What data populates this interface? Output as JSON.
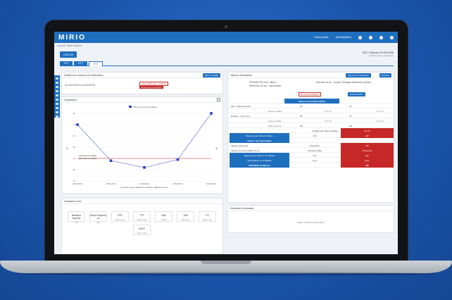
{
  "app": {
    "logo": "MIRIO",
    "links": [
      "Centre public",
      "Administration"
    ]
  },
  "breadcrumb": "Accueil / Bilan isokinet",
  "patient": {
    "tab_label": "COLON",
    "info_line1": "SECT. Etienne, 52 000 8795",
    "info_line2": "ancienne date / pathologie"
  },
  "tabs": [
    {
      "label": "ET1"
    },
    {
      "label": "ET2"
    },
    {
      "label": "ET3"
    }
  ],
  "session_card": {
    "title": "Détails de la séance de rééducation",
    "button": "Retour détaillé",
    "dates": "du 01/01/2019   au 01/03/2019",
    "tag1": "Zone fiable pour : évaluée",
    "tag2": "Programme à l'horaire"
  },
  "graph_card": {
    "title": "Graphiques",
    "legend": "Valeurs moyennes fiables",
    "x_axis_title": "Evolution de la fiabilité des Valeurs (Effectuée sur)",
    "ref_labels": [
      "30% Moyenne (fiable)",
      "20% Moyenne (fiable)"
    ]
  },
  "chart_data": {
    "type": "line",
    "categories": [
      "01/01/2019",
      "15/01/2019",
      "01/02/2019",
      "15/02/2019",
      "01/03/2019"
    ],
    "values": [
      70,
      38,
      32,
      39,
      80
    ],
    "ylim": [
      20,
      80
    ],
    "yticks": [
      20,
      30,
      40,
      50,
      60,
      70,
      80
    ]
  },
  "indicators": {
    "title": "Indicateurs clés",
    "items": [
      {
        "name": "Meilleure réponse",
        "value": "PB"
      },
      {
        "name": "Bonne réponse ou",
        "value": "Bal"
      },
      {
        "name": "PFE",
        "value": "EPF (min)"
      },
      {
        "name": "TTP",
        "value": "EPF (min)"
      },
      {
        "name": "DuR",
        "value": "MOS"
      },
      {
        "name": "TME",
        "value": "BE (min)"
      },
      {
        "name": "TTT",
        "value": "EPF (min)"
      },
      {
        "name": "AVEP",
        "value": "EVL (min)"
      }
    ]
  },
  "eval_card": {
    "title": "Valeurs d'évaluation",
    "btn_add": "Ajouter une évaluation",
    "btn_export": "Exporter",
    "meta_left": "PÉRIMÈTRE (cm) : Bilan 1",
    "meta_left2": "Référence de cet : Interrelation",
    "meta_right": "Données de la : Licence Thérapie déterminée (active)",
    "col_left_tag": "Dernière évaluation",
    "col_right_tag": "EVALUATION",
    "section1": "Valeurs mesurables fiables",
    "rows1": [
      {
        "label": "Flex - Agonistes (cm)",
        "sub": "",
        "a": "25",
        "a2": "",
        "b": "30",
        "b2": ""
      },
      {
        "label": "",
        "sub": "Mesure Fiable",
        "a": "",
        "a2": "(16,7%)",
        "b": "",
        "b2": "(16,7%)"
      },
      {
        "label": "Rotation - Antis (cm)",
        "sub": "",
        "a": "35",
        "a2": "",
        "b": "30",
        "b2": ""
      },
      {
        "label": "",
        "sub": "Mesure Fiable",
        "a": "",
        "a2": "(16,7%)",
        "b": "",
        "b2": "(16,7%)"
      },
      {
        "label": "",
        "sub": "Fiable Normes",
        "a": "NR",
        "a2": "",
        "b": "NR",
        "b2": ""
      }
    ],
    "total_label": "Fiabilité des Valeurs fiables",
    "total_val": "16,7%",
    "reponse_label": "Réponse aux Valeurs fiables",
    "reponse_a": "N/A",
    "reponse_b": "NR",
    "section2": "Valeurs non mesurables",
    "rows2": [
      {
        "label": "Valeurs associées",
        "a": "Présentée",
        "b": "NR"
      },
      {
        "label": "Valeurs ouvertes (fiable) (P+3)",
        "a": "Mesurée fiable",
        "b": "Présentée"
      }
    ],
    "resp2_label": "Réponse aux Valeurs non fiables",
    "resp2_a": "N/A",
    "resp2_b": "NR",
    "global_label": "Appréciation de la fiabilité",
    "global_a": "Leve",
    "global_b": "Excl.",
    "final_label": "RÉPONSE GLOBALE",
    "final_val": "NR",
    "results_title": "Résultats d'évaluation",
    "results_empty": "Aucun résultat d'évaluation"
  }
}
